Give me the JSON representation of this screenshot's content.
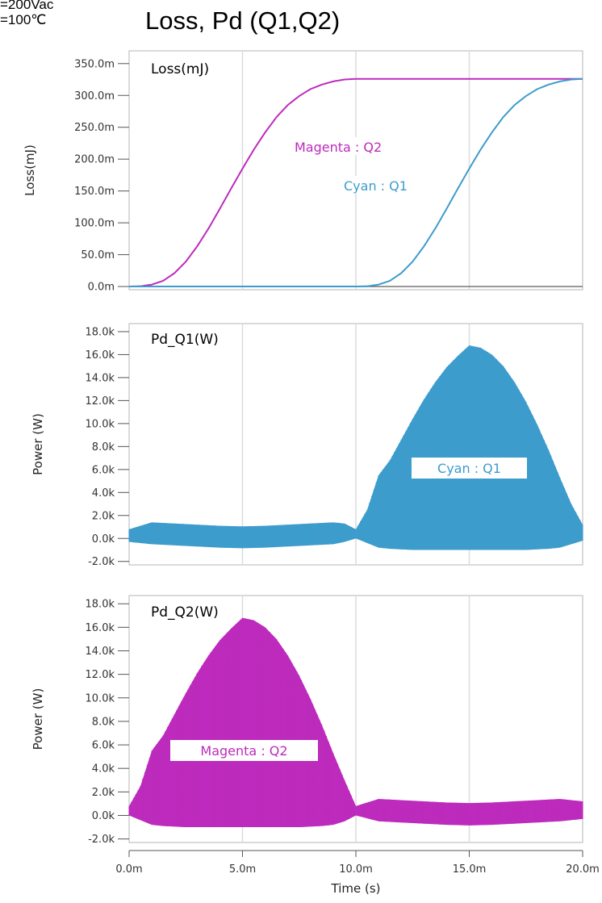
{
  "header": {
    "title": "Loss, Pd (Q1,Q2)",
    "condition_line1": "=200Vac",
    "condition_line2": "=100℃"
  },
  "colors": {
    "cyan": "#3d9ccc",
    "magenta": "#bd2bbd",
    "grid": "#dcdcdc",
    "frame": "#b5b5b5",
    "tick_text": "#333333"
  },
  "chart_data": [
    {
      "type": "line",
      "title": "Loss(mJ)",
      "ylabel": "Loss(mJ)",
      "xlim": [
        0,
        20
      ],
      "ylim": [
        -5,
        370
      ],
      "x_unit": "ms",
      "y_unit": "mJ",
      "yticks": [
        0,
        50,
        100,
        150,
        200,
        250,
        300,
        350
      ],
      "ytick_labels": [
        "0.0m",
        "50.0m",
        "100.0m",
        "150.0m",
        "200.0m",
        "250.0m",
        "300.0m",
        "350.0m"
      ],
      "grid": true,
      "series": [
        {
          "color": "magenta",
          "annotation": "Magenta : Q2",
          "x": [
            0,
            0.5,
            1,
            1.5,
            2,
            2.5,
            3,
            3.5,
            4,
            4.5,
            5,
            5.5,
            6,
            6.5,
            7,
            7.5,
            8,
            8.5,
            9,
            9.5,
            10,
            12,
            15,
            20
          ],
          "y": [
            0,
            0.4,
            3,
            9,
            21,
            39,
            63,
            91,
            122,
            154,
            185,
            215,
            242,
            266,
            285,
            299,
            310,
            317,
            322,
            325,
            326,
            326,
            326,
            326
          ]
        },
        {
          "color": "cyan",
          "annotation": "Cyan : Q1",
          "x": [
            0,
            5,
            10,
            10.5,
            11,
            11.5,
            12,
            12.5,
            13,
            13.5,
            14,
            14.5,
            15,
            15.5,
            16,
            16.5,
            17,
            17.5,
            18,
            18.5,
            19,
            19.5,
            20
          ],
          "y": [
            0,
            0,
            0,
            0.4,
            3,
            9,
            21,
            39,
            63,
            91,
            122,
            154,
            185,
            215,
            242,
            266,
            285,
            299,
            310,
            317,
            322,
            325,
            326
          ]
        }
      ]
    },
    {
      "type": "area",
      "title": "Pd_Q1(W)",
      "ylabel": "Power (W)",
      "xlim": [
        0,
        20
      ],
      "ylim": [
        -2.3,
        18.7
      ],
      "x_unit": "ms",
      "y_unit": "kW",
      "yticks": [
        -2,
        0,
        2,
        4,
        6,
        8,
        10,
        12,
        14,
        16,
        18
      ],
      "ytick_labels": [
        "-2.0k",
        "0.0k",
        "2.0k",
        "4.0k",
        "6.0k",
        "8.0k",
        "10.0k",
        "12.0k",
        "14.0k",
        "16.0k",
        "18.0k"
      ],
      "grid": true,
      "series": [
        {
          "color": "cyan",
          "annotation": "Cyan : Q1",
          "x": [
            0,
            1,
            2,
            3,
            4,
            5,
            6,
            7,
            8,
            9,
            9.5,
            10,
            10.5,
            11,
            11.5,
            12,
            12.5,
            13,
            13.5,
            14,
            14.5,
            15,
            15.5,
            16,
            16.5,
            17,
            17.5,
            18,
            18.5,
            19,
            19.5,
            20
          ],
          "y_max": [
            0.8,
            1.4,
            1.3,
            1.2,
            1.1,
            1.05,
            1.1,
            1.2,
            1.3,
            1.4,
            1.3,
            0.8,
            2.5,
            5.5,
            6.8,
            8.6,
            10.4,
            12.1,
            13.6,
            14.9,
            15.9,
            16.8,
            16.6,
            16.0,
            15.0,
            13.6,
            11.9,
            9.9,
            7.7,
            5.3,
            3.0,
            1.2
          ],
          "y_min": [
            -0.3,
            -0.5,
            -0.6,
            -0.7,
            -0.8,
            -0.85,
            -0.8,
            -0.7,
            -0.6,
            -0.5,
            -0.3,
            0,
            -0.4,
            -0.8,
            -0.9,
            -0.95,
            -1.0,
            -1.0,
            -1.0,
            -1.0,
            -1.0,
            -1.0,
            -1.0,
            -1.0,
            -1.0,
            -1.0,
            -1.0,
            -0.95,
            -0.9,
            -0.8,
            -0.5,
            -0.2
          ]
        }
      ]
    },
    {
      "type": "area",
      "title": "Pd_Q2(W)",
      "ylabel": "Power (W)",
      "xlabel": "Time (s)",
      "xlim": [
        0,
        20
      ],
      "ylim": [
        -2.3,
        18.7
      ],
      "x_unit": "ms",
      "y_unit": "kW",
      "xticks": [
        0,
        5,
        10,
        15,
        20
      ],
      "xtick_labels": [
        "0.0m",
        "5.0m",
        "10.0m",
        "15.0m",
        "20.0m"
      ],
      "yticks": [
        -2,
        0,
        2,
        4,
        6,
        8,
        10,
        12,
        14,
        16,
        18
      ],
      "ytick_labels": [
        "-2.0k",
        "0.0k",
        "2.0k",
        "4.0k",
        "6.0k",
        "8.0k",
        "10.0k",
        "12.0k",
        "14.0k",
        "16.0k",
        "18.0k"
      ],
      "grid": true,
      "series": [
        {
          "color": "magenta",
          "annotation": "Magenta : Q2",
          "x": [
            0,
            0.5,
            1,
            1.5,
            2,
            2.5,
            3,
            3.5,
            4,
            4.5,
            5,
            5.5,
            6,
            6.5,
            7,
            7.5,
            8,
            8.5,
            9,
            9.5,
            10,
            11,
            12,
            13,
            14,
            15,
            16,
            17,
            18,
            19,
            20
          ],
          "y_max": [
            0.8,
            2.5,
            5.5,
            6.8,
            8.6,
            10.4,
            12.1,
            13.6,
            14.9,
            15.9,
            16.8,
            16.6,
            16.0,
            15.0,
            13.6,
            11.9,
            9.9,
            7.7,
            5.3,
            3.0,
            0.8,
            1.4,
            1.3,
            1.2,
            1.1,
            1.05,
            1.1,
            1.2,
            1.3,
            1.4,
            1.2
          ],
          "y_min": [
            0,
            -0.4,
            -0.8,
            -0.9,
            -0.95,
            -1.0,
            -1.0,
            -1.0,
            -1.0,
            -1.0,
            -1.0,
            -1.0,
            -1.0,
            -1.0,
            -1.0,
            -1.0,
            -0.95,
            -0.9,
            -0.8,
            -0.5,
            0,
            -0.5,
            -0.6,
            -0.7,
            -0.8,
            -0.85,
            -0.8,
            -0.7,
            -0.6,
            -0.5,
            -0.3
          ]
        }
      ]
    }
  ]
}
